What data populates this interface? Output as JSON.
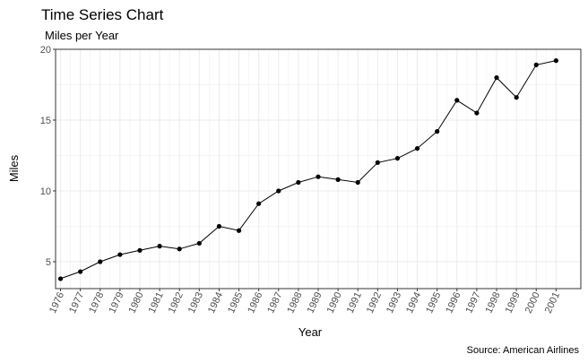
{
  "chart_data": {
    "type": "line",
    "title": "Time Series Chart",
    "subtitle": "Miles per Year",
    "xlabel": "Year",
    "ylabel": "Miles",
    "caption": "Source: American Airlines",
    "x": [
      1976,
      1977,
      1978,
      1979,
      1980,
      1981,
      1982,
      1983,
      1984,
      1985,
      1986,
      1987,
      1988,
      1989,
      1990,
      1991,
      1992,
      1993,
      1994,
      1995,
      1996,
      1997,
      1998,
      1999,
      2000,
      2001
    ],
    "y": [
      3.8,
      4.3,
      5.0,
      5.5,
      5.8,
      6.1,
      5.9,
      6.3,
      7.5,
      7.2,
      9.1,
      10.0,
      10.6,
      11.0,
      10.8,
      10.6,
      12.0,
      12.3,
      13.0,
      14.2,
      16.4,
      15.5,
      18.0,
      16.6,
      18.9,
      19.2
    ],
    "xlim": [
      1975.75,
      2002.25
    ],
    "ylim": [
      3.1,
      20.0
    ],
    "yticks": [
      5,
      10,
      15,
      20
    ],
    "grid": true,
    "colors": {
      "line": "#000000",
      "point": "#000000",
      "grid": "#ebebeb",
      "panel": "#ffffff"
    }
  }
}
